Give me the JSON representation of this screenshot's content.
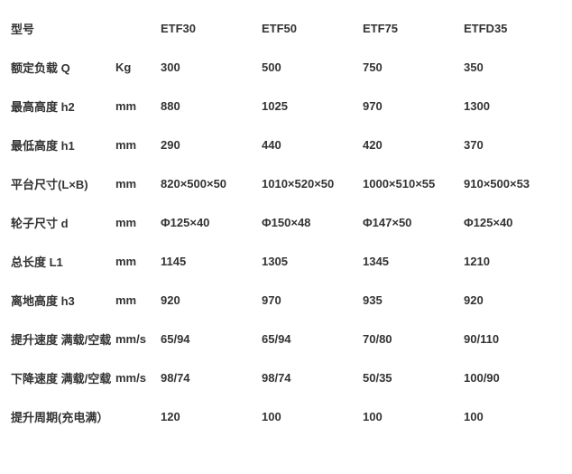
{
  "table": {
    "columns": {
      "label": "型号",
      "unit": "",
      "models": [
        "ETF30",
        "ETF50",
        "ETF75",
        "ETFD35"
      ]
    },
    "rows": [
      {
        "label": "额定负载 Q",
        "unit": "Kg",
        "values": [
          "300",
          "500",
          "750",
          "350"
        ]
      },
      {
        "label": "最高高度 h2",
        "unit": "mm",
        "values": [
          "880",
          "1025",
          "970",
          "1300"
        ]
      },
      {
        "label": "最低高度 h1",
        "unit": "mm",
        "values": [
          "290",
          "440",
          "420",
          "370"
        ]
      },
      {
        "label": "平台尺寸(L×B)",
        "unit": "mm",
        "values": [
          "820×500×50",
          "1010×520×50",
          "1000×510×55",
          "910×500×53"
        ]
      },
      {
        "label": "轮子尺寸 d",
        "unit": "mm",
        "values": [
          "Φ125×40",
          "Φ150×48",
          "Φ147×50",
          "Φ125×40"
        ]
      },
      {
        "label": "总长度 L1",
        "unit": "mm",
        "values": [
          "1145",
          "1305",
          "1345",
          "1210"
        ]
      },
      {
        "label": "离地高度 h3",
        "unit": "mm",
        "values": [
          "920",
          "970",
          "935",
          "920"
        ]
      },
      {
        "label": "提升速度 满载/空载",
        "unit": "mm/s",
        "values": [
          "65/94",
          "65/94",
          "70/80",
          "90/110"
        ]
      },
      {
        "label": "下降速度 满载/空载",
        "unit": "mm/s",
        "values": [
          "98/74",
          "98/74",
          "50/35",
          "100/90"
        ]
      },
      {
        "label": "提升周期(充电满）",
        "unit": "",
        "values": [
          "120",
          "100",
          "100",
          "100"
        ]
      }
    ],
    "text_color": "#333333",
    "background_color": "#ffffff",
    "font_size": 13,
    "font_weight": "bold"
  }
}
